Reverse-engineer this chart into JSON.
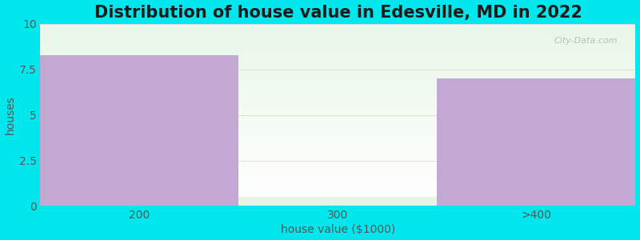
{
  "title": "Distribution of house value in Edesville, MD in 2022",
  "xlabel": "house value ($1000)",
  "ylabel": "houses",
  "categories": [
    "200",
    "300",
    ">400"
  ],
  "values": [
    8.3,
    0.5,
    7.0
  ],
  "bar_color": "#c4a8d4",
  "bar_color_light": "#ddf0dd",
  "ylim": [
    0,
    10
  ],
  "yticks": [
    0,
    2.5,
    5,
    7.5,
    10
  ],
  "background_outer": "#00e8ee",
  "background_top": "#e8f5ee",
  "background_bottom": "#ffffff",
  "title_fontsize": 15,
  "axis_label_fontsize": 10,
  "tick_fontsize": 10,
  "watermark": "City-Data.com"
}
